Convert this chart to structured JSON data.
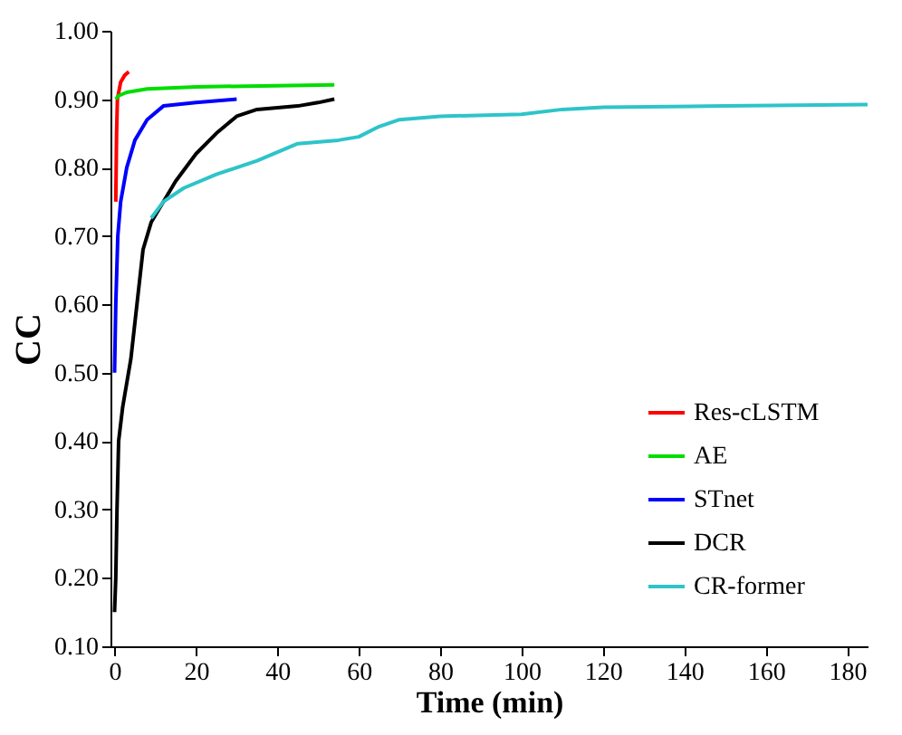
{
  "chart_data": {
    "type": "line",
    "xlabel": "Time (min)",
    "ylabel": "CC",
    "xlim": [
      -1,
      185
    ],
    "xticks": [
      0,
      20,
      40,
      60,
      80,
      100,
      120,
      140,
      160,
      180
    ],
    "ylim": [
      0.1,
      1.0
    ],
    "yticks": [
      {
        "value": 0.1,
        "label": "0.10"
      },
      {
        "value": 0.2,
        "label": "0.20"
      },
      {
        "value": 0.3,
        "label": "0.30"
      },
      {
        "value": 0.4,
        "label": "0.40"
      },
      {
        "value": 0.5,
        "label": "0.50"
      },
      {
        "value": 0.6,
        "label": "0.60"
      },
      {
        "value": 0.7,
        "label": "0.70"
      },
      {
        "value": 0.8,
        "label": "0.80"
      },
      {
        "value": 0.9,
        "label": "0.90"
      },
      {
        "value": 1.0,
        "label": "1.00"
      }
    ],
    "grid": false,
    "legend": "bottom right",
    "line_style": "solid",
    "series": [
      {
        "name": "Res-cLSTM",
        "color": "#ff0000",
        "x": [
          0.3,
          0.5,
          0.7,
          1.5,
          2.5,
          3.5
        ],
        "values": [
          0.75,
          0.85,
          0.9,
          0.925,
          0.935,
          0.94
        ]
      },
      {
        "name": "AE",
        "color": "#00dd00",
        "x": [
          0.3,
          1,
          3,
          8,
          20,
          54
        ],
        "values": [
          0.9,
          0.905,
          0.91,
          0.915,
          0.918,
          0.921
        ]
      },
      {
        "name": "STnet",
        "color": "#0000ff",
        "x": [
          0,
          0.3,
          0.8,
          1.5,
          3,
          5,
          8,
          12,
          20,
          30
        ],
        "values": [
          0.5,
          0.6,
          0.7,
          0.75,
          0.8,
          0.84,
          0.87,
          0.89,
          0.895,
          0.9
        ]
      },
      {
        "name": "DCR",
        "color": "#000000",
        "x": [
          0,
          0.3,
          0.6,
          1,
          2,
          4,
          5.5,
          7,
          9,
          15,
          20,
          25,
          30,
          35,
          45,
          50,
          54
        ],
        "values": [
          0.15,
          0.2,
          0.3,
          0.4,
          0.45,
          0.52,
          0.6,
          0.68,
          0.72,
          0.78,
          0.82,
          0.85,
          0.875,
          0.885,
          0.89,
          0.895,
          0.9
        ]
      },
      {
        "name": "CR-former",
        "color": "#2ec4c9",
        "x": [
          9,
          12,
          17,
          25,
          35,
          45,
          55,
          60,
          65,
          70,
          80,
          100,
          110,
          120,
          150,
          185
        ],
        "values": [
          0.726,
          0.75,
          0.77,
          0.79,
          0.81,
          0.835,
          0.84,
          0.845,
          0.86,
          0.87,
          0.875,
          0.878,
          0.885,
          0.888,
          0.89,
          0.892
        ]
      }
    ]
  }
}
